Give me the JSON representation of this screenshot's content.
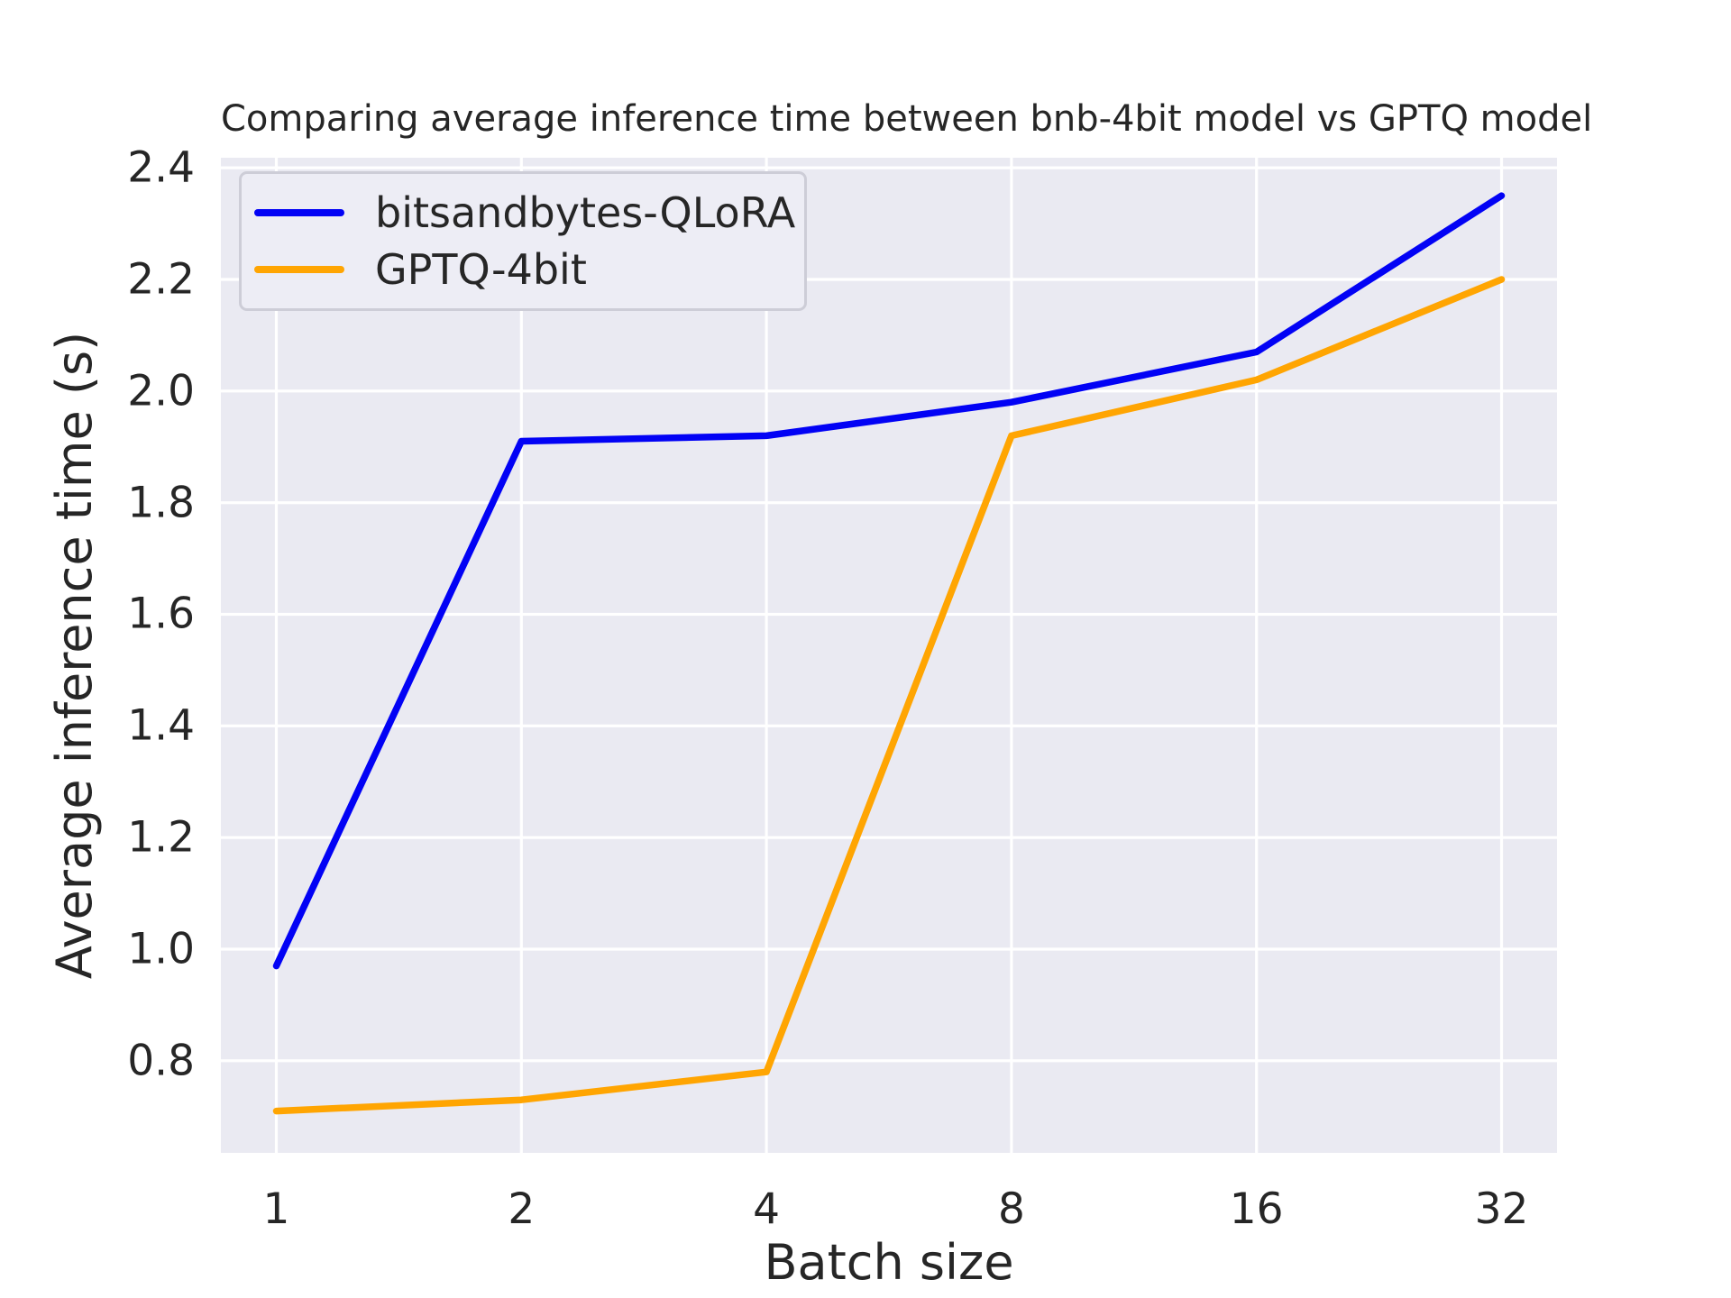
{
  "chart_data": {
    "type": "line",
    "title": "Comparing average inference time between bnb-4bit model vs GPTQ model",
    "xlabel": "Batch size",
    "ylabel": "Average inference time (s)",
    "categories": [
      1,
      2,
      4,
      8,
      16,
      32
    ],
    "x_tick_labels": [
      "1",
      "2",
      "4",
      "8",
      "16",
      "32"
    ],
    "y_ticks": [
      0.8,
      1.0,
      1.2,
      1.4,
      1.6,
      1.8,
      2.0,
      2.2,
      2.4
    ],
    "y_tick_labels": [
      "0.8",
      "1.0",
      "1.2",
      "1.4",
      "1.6",
      "1.8",
      "2.0",
      "2.2",
      "2.4"
    ],
    "ylim": [
      0.635,
      2.418
    ],
    "grid": true,
    "legend_position": "upper-left",
    "series": [
      {
        "name": "bitsandbytes-QLoRA",
        "color": "#0202f5",
        "values": [
          0.97,
          1.91,
          1.92,
          1.98,
          2.07,
          2.35
        ]
      },
      {
        "name": "GPTQ-4bit",
        "color": "#ffa502",
        "values": [
          0.71,
          0.73,
          0.78,
          1.92,
          2.02,
          2.2
        ]
      }
    ],
    "colors": {
      "plot_background": "#eaeaf2",
      "grid": "#ffffff",
      "text": "#262626",
      "legend_background": "#ededf5",
      "legend_border": "#cdcdd7"
    }
  }
}
